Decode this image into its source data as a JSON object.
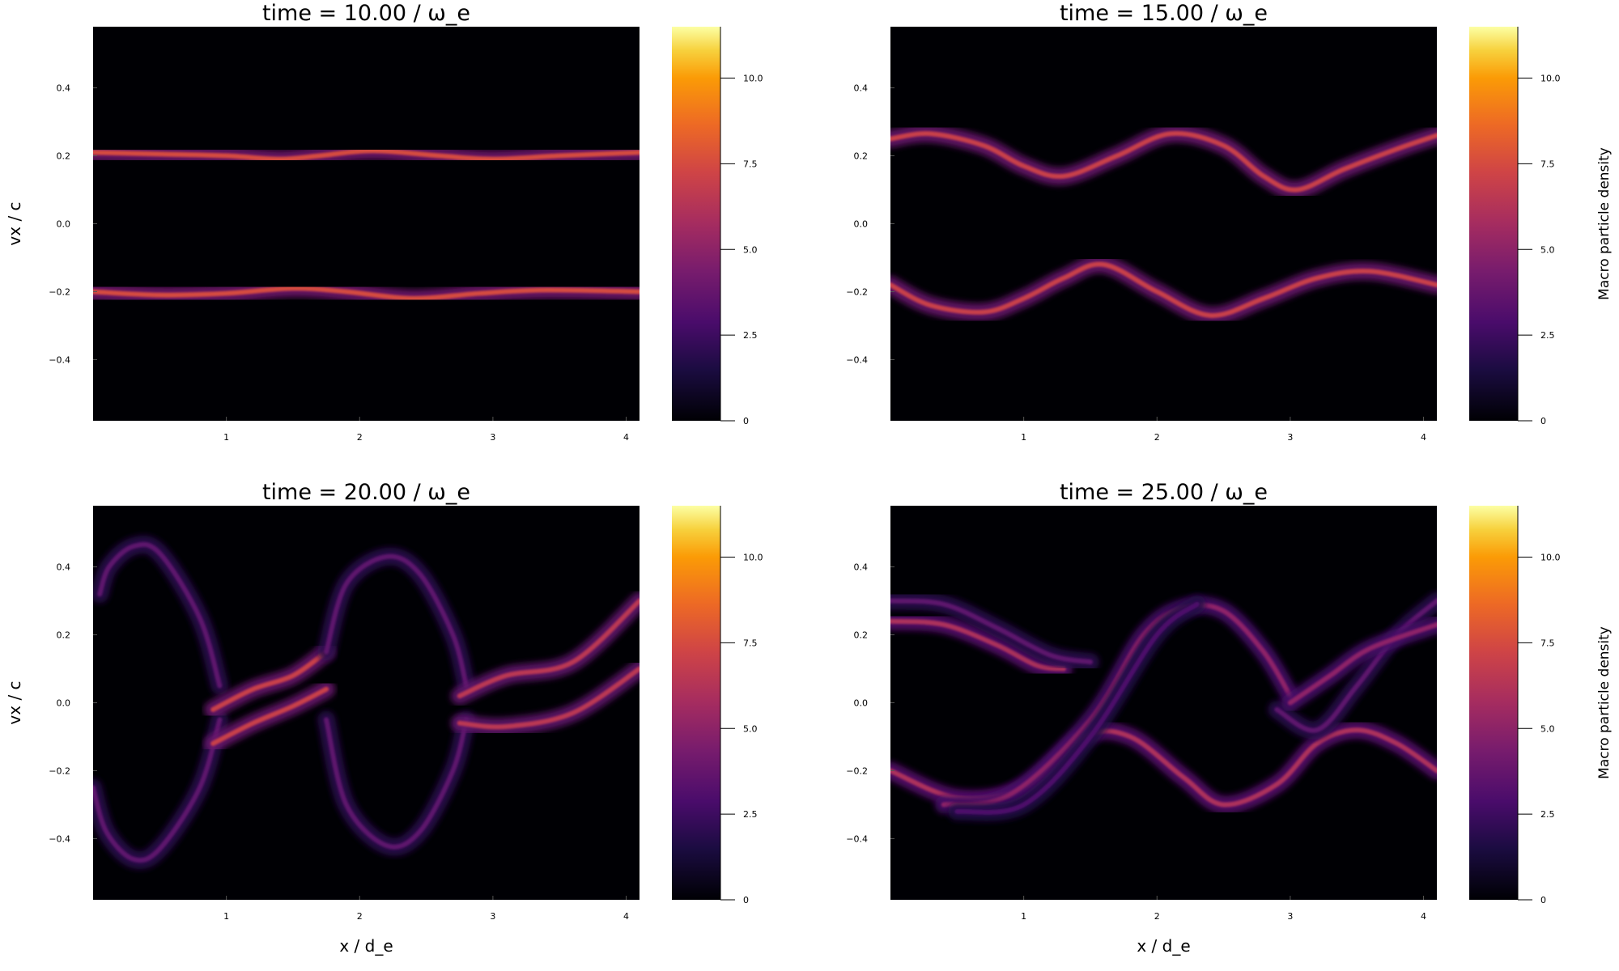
{
  "chart_data": [
    {
      "type": "heatmap",
      "title": "time = 10.00  / ω_e",
      "xlabel": "",
      "ylabel": "vx / c",
      "colorbar_label": "",
      "xlim": [
        0,
        4.1
      ],
      "ylim": [
        -0.58,
        0.58
      ],
      "clim": [
        0,
        11.5
      ],
      "x_ticks": [
        "1",
        "2",
        "3",
        "4"
      ],
      "y_ticks": [
        "−0.4",
        "−0.2",
        "0.0",
        "0.2",
        "0.4"
      ],
      "colorbar_ticks": [
        "0",
        "2.5",
        "5.0",
        "7.5",
        "10.0"
      ],
      "colormap": "inferno",
      "curves": [
        {
          "x": [
            0,
            0.5,
            1.0,
            1.4,
            1.7,
            2.1,
            2.6,
            3.0,
            3.5,
            4.1
          ],
          "y": [
            0.21,
            0.205,
            0.2,
            0.19,
            0.2,
            0.215,
            0.2,
            0.19,
            0.2,
            0.21
          ],
          "level": 7.5
        },
        {
          "x": [
            0,
            0.5,
            1.0,
            1.5,
            1.9,
            2.4,
            2.9,
            3.4,
            4.1
          ],
          "y": [
            -0.2,
            -0.21,
            -0.205,
            -0.19,
            -0.2,
            -0.22,
            -0.205,
            -0.195,
            -0.2
          ],
          "level": 7.5
        }
      ]
    },
    {
      "type": "heatmap",
      "title": "time = 15.00  / ω_e",
      "xlabel": "",
      "ylabel": "",
      "colorbar_label": "Macro particle density",
      "xlim": [
        0,
        4.1
      ],
      "ylim": [
        -0.58,
        0.58
      ],
      "clim": [
        0,
        11.5
      ],
      "x_ticks": [
        "1",
        "2",
        "3",
        "4"
      ],
      "y_ticks": [
        "−0.4",
        "−0.2",
        "0.0",
        "0.2",
        "0.4"
      ],
      "colorbar_ticks": [
        "0",
        "2.5",
        "5.0",
        "7.5",
        "10.0"
      ],
      "colormap": "inferno",
      "curves": [
        {
          "x": [
            0,
            0.3,
            0.7,
            1.0,
            1.3,
            1.7,
            2.1,
            2.5,
            2.8,
            3.05,
            3.4,
            3.8,
            4.1
          ],
          "y": [
            0.25,
            0.265,
            0.23,
            0.17,
            0.14,
            0.2,
            0.265,
            0.23,
            0.14,
            0.1,
            0.16,
            0.22,
            0.26
          ],
          "level": 7.0
        },
        {
          "x": [
            0,
            0.3,
            0.7,
            1.0,
            1.3,
            1.6,
            2.0,
            2.4,
            2.8,
            3.2,
            3.6,
            4.1
          ],
          "y": [
            -0.18,
            -0.24,
            -0.26,
            -0.22,
            -0.16,
            -0.12,
            -0.2,
            -0.27,
            -0.22,
            -0.16,
            -0.14,
            -0.18
          ],
          "level": 7.0
        }
      ]
    },
    {
      "type": "heatmap",
      "title": "time = 20.00  / ω_e",
      "xlabel": "x / d_e",
      "ylabel": "vx / c",
      "colorbar_label": "",
      "xlim": [
        0,
        4.1
      ],
      "ylim": [
        -0.58,
        0.58
      ],
      "clim": [
        0,
        11.5
      ],
      "x_ticks": [
        "1",
        "2",
        "3",
        "4"
      ],
      "y_ticks": [
        "−0.4",
        "−0.2",
        "0.0",
        "0.2",
        "0.4"
      ],
      "colorbar_ticks": [
        "0",
        "2.5",
        "5.0",
        "7.5",
        "10.0"
      ],
      "colormap": "inferno",
      "curves": [
        {
          "x": [
            0.95,
            0.8,
            0.5,
            0.3,
            0.12,
            0.05
          ],
          "y": [
            0.05,
            0.25,
            0.44,
            0.46,
            0.4,
            0.32
          ],
          "level": 3.5
        },
        {
          "x": [
            0.95,
            0.8,
            0.5,
            0.3,
            0.1,
            0.0
          ],
          "y": [
            -0.05,
            -0.25,
            -0.43,
            -0.46,
            -0.38,
            -0.25
          ],
          "level": 3.5
        },
        {
          "x": [
            0.9,
            1.2,
            1.5,
            1.75
          ],
          "y": [
            -0.02,
            0.04,
            0.08,
            0.15
          ],
          "level": 7.0
        },
        {
          "x": [
            0.9,
            1.2,
            1.5,
            1.75
          ],
          "y": [
            -0.12,
            -0.06,
            -0.01,
            0.04
          ],
          "level": 7.0
        },
        {
          "x": [
            1.75,
            1.9,
            2.2,
            2.45,
            2.7,
            2.8
          ],
          "y": [
            0.15,
            0.35,
            0.43,
            0.38,
            0.2,
            0.05
          ],
          "level": 3.5
        },
        {
          "x": [
            1.75,
            1.9,
            2.2,
            2.45,
            2.7,
            2.8
          ],
          "y": [
            -0.05,
            -0.3,
            -0.42,
            -0.38,
            -0.2,
            -0.05
          ],
          "level": 3.5
        },
        {
          "x": [
            2.75,
            3.1,
            3.6,
            4.1
          ],
          "y": [
            0.02,
            0.08,
            0.12,
            0.3
          ],
          "level": 6.5
        },
        {
          "x": [
            2.75,
            3.1,
            3.6,
            4.1
          ],
          "y": [
            -0.06,
            -0.07,
            -0.03,
            0.1
          ],
          "level": 6.5
        }
      ]
    },
    {
      "type": "heatmap",
      "title": "time = 25.00  / ω_e",
      "xlabel": "x / d_e",
      "ylabel": "",
      "colorbar_label": "Macro particle density",
      "xlim": [
        0,
        4.1
      ],
      "ylim": [
        -0.58,
        0.58
      ],
      "clim": [
        0,
        11.5
      ],
      "x_ticks": [
        "1",
        "2",
        "3",
        "4"
      ],
      "y_ticks": [
        "−0.4",
        "−0.2",
        "0.0",
        "0.2",
        "0.4"
      ],
      "colorbar_ticks": [
        "0",
        "2.5",
        "5.0",
        "7.5",
        "10.0"
      ],
      "colormap": "inferno",
      "curves": [
        {
          "x": [
            0,
            0.4,
            0.8,
            1.1,
            1.3
          ],
          "y": [
            0.24,
            0.23,
            0.17,
            0.11,
            0.1
          ],
          "level": 6.0
        },
        {
          "x": [
            0,
            0.4,
            0.8,
            1.2,
            1.5
          ],
          "y": [
            0.3,
            0.29,
            0.22,
            0.14,
            0.12
          ],
          "level": 3.5
        },
        {
          "x": [
            0,
            0.5,
            1.0,
            1.45,
            1.8,
            2.2,
            2.5,
            2.9,
            3.2,
            3.5,
            3.8,
            4.1
          ],
          "y": [
            -0.2,
            -0.28,
            -0.25,
            -0.1,
            -0.1,
            -0.22,
            -0.3,
            -0.24,
            -0.12,
            -0.08,
            -0.12,
            -0.2
          ],
          "level": 6.0
        },
        {
          "x": [
            0.4,
            0.9,
            1.5,
            1.9,
            2.2,
            2.5,
            2.8,
            3.0
          ],
          "y": [
            -0.3,
            -0.27,
            -0.05,
            0.2,
            0.28,
            0.27,
            0.15,
            0.02
          ],
          "level": 5.0
        },
        {
          "x": [
            0.5,
            1.0,
            1.5,
            2.0,
            2.3
          ],
          "y": [
            -0.32,
            -0.3,
            -0.1,
            0.2,
            0.29
          ],
          "level": 3.0
        },
        {
          "x": [
            2.9,
            3.2,
            3.5,
            3.8,
            4.1
          ],
          "y": [
            -0.02,
            -0.08,
            0.05,
            0.2,
            0.3
          ],
          "level": 3.5
        },
        {
          "x": [
            3.0,
            3.3,
            3.6,
            4.1
          ],
          "y": [
            0.0,
            0.08,
            0.16,
            0.23
          ],
          "level": 5.0
        }
      ]
    }
  ]
}
